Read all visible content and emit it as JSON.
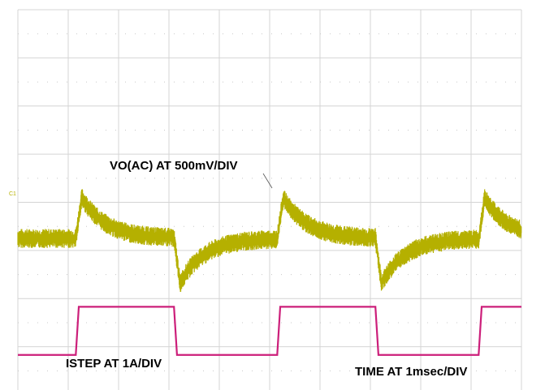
{
  "chart_data": {
    "type": "line",
    "title": "",
    "xlabel": "",
    "ylabel": "",
    "grid": true,
    "x_divisions": 10,
    "y_divisions": 8,
    "x_unit": "div (1 msec/div)",
    "channel_marker": "C1",
    "series": [
      {
        "name": "VO(AC) AT 500mV/DIV",
        "color": "#b5b000",
        "baseline_div": 3.25,
        "noise_band_div": 0.2,
        "step_up_times_div": [
          1.15,
          5.15,
          9.15
        ],
        "step_down_times_div": [
          3.1,
          7.1
        ],
        "overshoot_div": 0.85,
        "undershoot_div": 0.95,
        "recovery_time_div": 1.5
      },
      {
        "name": "ISTEP AT 1A/DIV",
        "color": "#cc1f7a",
        "low_level_div": 0.83,
        "high_level_div": 1.83,
        "rising_edges_div": [
          1.15,
          5.15,
          9.15
        ],
        "falling_edges_div": [
          3.1,
          7.1
        ]
      }
    ],
    "annotations": [
      {
        "text": "VO(AC) AT 500mV/DIV"
      },
      {
        "text": "ISTEP AT 1A/DIV"
      },
      {
        "text": "TIME AT 1msec/DIV"
      }
    ]
  }
}
